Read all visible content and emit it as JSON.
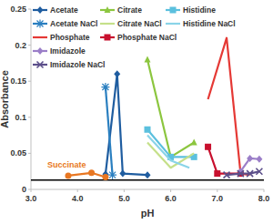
{
  "chart_data": {
    "type": "line",
    "x_label": "pH",
    "y_label": "Absorbance",
    "xlim": [
      3,
      8
    ],
    "ylim": [
      0,
      0.25
    ],
    "xticks": [
      {
        "value": 3,
        "label": "3.0"
      },
      {
        "value": 4,
        "label": "4.0"
      },
      {
        "value": 5,
        "label": "5.0"
      },
      {
        "value": 6,
        "label": "6.0"
      },
      {
        "value": 7,
        "label": "7.0"
      },
      {
        "value": 8,
        "label": "8.0"
      }
    ],
    "yticks": [
      0,
      0.05,
      0.1,
      0.15,
      0.2,
      0.25
    ],
    "grid": false,
    "legend": "upper left",
    "series": [
      {
        "name": "Acetate",
        "color": "#1f5da0",
        "marker": "diamond",
        "x": [
          4.6,
          4.85,
          4.97,
          5.5
        ],
        "values": [
          0.021,
          0.16,
          0.022,
          0.02
        ]
      },
      {
        "name": "Citrate",
        "color": "#8cc63f",
        "marker": "triangle",
        "x": [
          5.5,
          6.0,
          6.5
        ],
        "values": [
          0.18,
          0.045,
          0.065
        ]
      },
      {
        "name": "Histidine",
        "color": "#5bc0de",
        "marker": "square",
        "x": [
          5.5,
          6.0,
          6.5
        ],
        "values": [
          0.083,
          0.045,
          0.045
        ]
      },
      {
        "name": "Acetate NaCl",
        "color": "#2a7fc0",
        "marker": "star",
        "x": [
          4.6,
          4.75
        ],
        "values": [
          0.142,
          0.02
        ]
      },
      {
        "name": "Citrate NaCl",
        "color": "#c5e08a",
        "marker": "none",
        "x": [
          5.5,
          6.0,
          6.5
        ],
        "values": [
          0.065,
          0.03,
          0.05
        ]
      },
      {
        "name": "Histidine NaCl",
        "color": "#8ad4e8",
        "marker": "none",
        "x": [
          5.5,
          6.0,
          6.4
        ],
        "values": [
          0.075,
          0.04,
          0.03
        ]
      },
      {
        "name": "Phosphate",
        "color": "#e53935",
        "marker": "none",
        "x": [
          6.8,
          7.2,
          7.5,
          7.7
        ],
        "values": [
          0.125,
          0.21,
          0.022,
          0.02
        ]
      },
      {
        "name": "Phosphate NaCl",
        "color": "#c8102e",
        "marker": "square",
        "x": [
          6.8,
          7.0,
          7.5
        ],
        "values": [
          0.059,
          0.022,
          0.022
        ]
      },
      {
        "name": "Imidazole",
        "color": "#9b7ec8",
        "marker": "diamond",
        "x": [
          7.5,
          7.7,
          7.9
        ],
        "values": [
          0.025,
          0.043,
          0.042
        ]
      },
      {
        "name": "Imidazole NaCl",
        "color": "#5c4f8a",
        "marker": "x",
        "x": [
          7.2,
          7.5,
          7.7,
          7.9
        ],
        "values": [
          0.02,
          0.022,
          0.022,
          0.025
        ]
      },
      {
        "color": "#e87722",
        "marker": "circle",
        "x": [
          3.8,
          4.3,
          4.6
        ],
        "values": [
          0.019,
          0.023,
          0.017
        ]
      }
    ],
    "reference_lines": [
      {
        "y": 0.013,
        "color": "#000000"
      }
    ],
    "annotations": [
      {
        "text": "Succinate",
        "x": 3.35,
        "y": 0.03,
        "color": "#e87722"
      }
    ]
  }
}
